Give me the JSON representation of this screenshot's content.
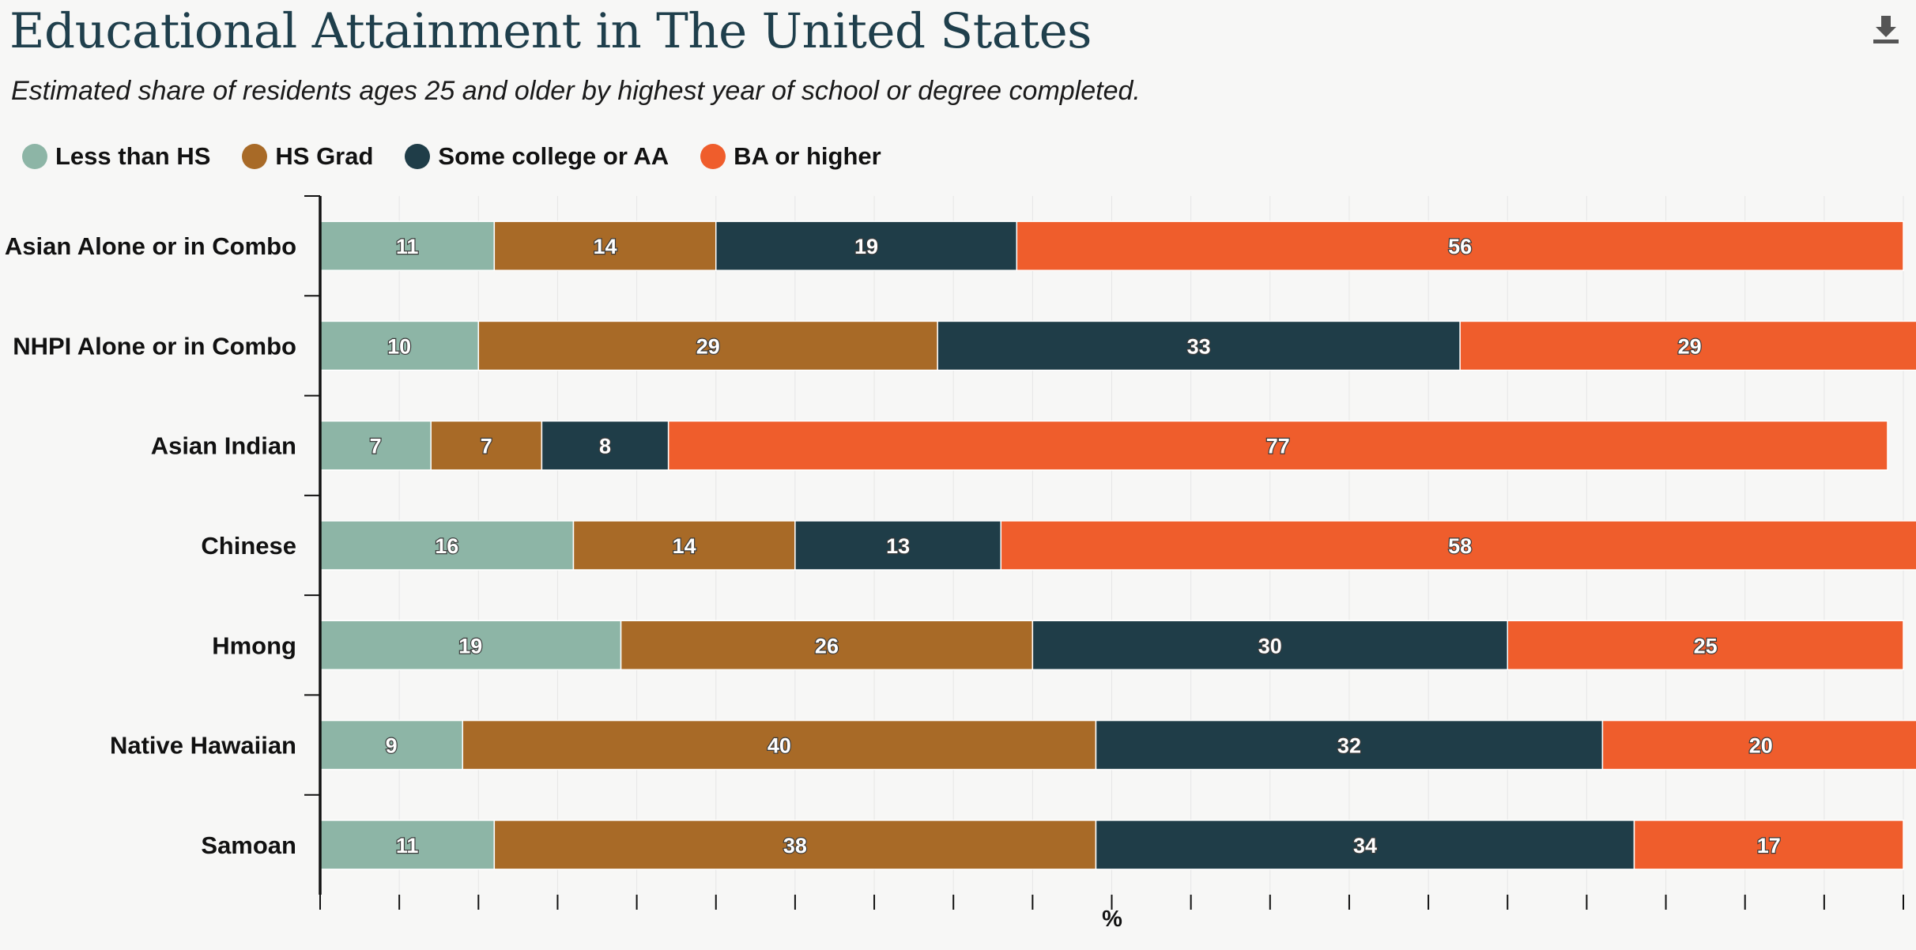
{
  "header": {
    "title": "Educational Attainment in The United States",
    "subtitle": "Estimated share of residents ages 25 and older by highest year of school or degree completed.",
    "download_icon": "download-icon"
  },
  "colors": {
    "Less than HS": "#8db5a6",
    "HS Grad": "#a86a27",
    "Some college or AA": "#1f3d48",
    "BA or higher": "#ef5d2c",
    "axis": "#111111",
    "grid": "#e6e6e6"
  },
  "chart_data": {
    "type": "bar",
    "orientation": "horizontal",
    "stacked": true,
    "title": "Educational Attainment in The United States",
    "subtitle": "Estimated share of residents ages 25 and older by highest year of school or degree completed.",
    "xlabel": "%",
    "ylabel": "",
    "xlim": [
      0,
      100
    ],
    "x_ticks": 20,
    "grid": true,
    "legend_position": "top-left",
    "categories": [
      "Asian Alone or in Combo",
      "NHPI Alone or in Combo",
      "Asian Indian",
      "Chinese",
      "Hmong",
      "Native Hawaiian",
      "Samoan"
    ],
    "series": [
      {
        "name": "Less than HS",
        "values": [
          11,
          10,
          7,
          16,
          19,
          9,
          11
        ]
      },
      {
        "name": "HS Grad",
        "values": [
          14,
          29,
          7,
          14,
          26,
          40,
          38
        ]
      },
      {
        "name": "Some college or AA",
        "values": [
          19,
          33,
          8,
          13,
          30,
          32,
          34
        ]
      },
      {
        "name": "BA or higher",
        "values": [
          56,
          29,
          77,
          58,
          25,
          20,
          17
        ]
      }
    ]
  }
}
